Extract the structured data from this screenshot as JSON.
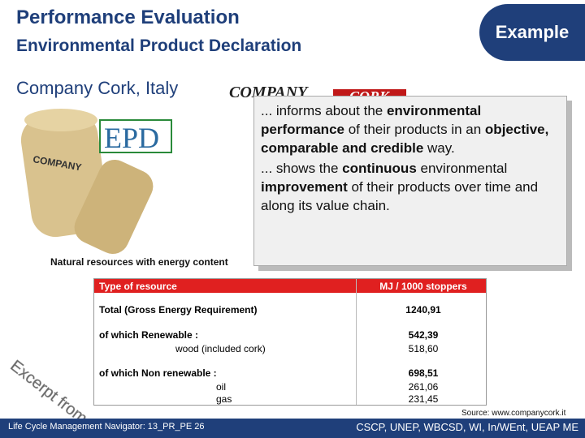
{
  "header": {
    "title": "Performance Evaluation",
    "subtitle": "Environmental Product Declaration",
    "badge": "Example"
  },
  "company": "Company Cork, Italy",
  "logo": {
    "word1": "COMPANY",
    "word2": "CORK"
  },
  "epd_logo": "EPD",
  "callout": [
    [
      {
        "text": "... informs about the ",
        "bold": false
      },
      {
        "text": "environmental performance",
        "bold": true
      },
      {
        "text": " of their products in an ",
        "bold": false
      },
      {
        "text": "objective, comparable and credible",
        "bold": true
      },
      {
        "text": " way.",
        "bold": false
      }
    ],
    [
      {
        "text": "... shows the ",
        "bold": false
      },
      {
        "text": "continuous",
        "bold": true
      },
      {
        "text": " environmental ",
        "bold": false
      },
      {
        "text": "improvement",
        "bold": true
      },
      {
        "text": " of their products over time and along its value chain.",
        "bold": false
      }
    ]
  ],
  "table": {
    "caption": "Natural resources with energy content",
    "header": [
      "Type of resource",
      "MJ / 1000 stoppers"
    ],
    "rows": [
      [
        "Total (Gross Energy Requirement)",
        "1240,91"
      ],
      [
        "of which Renewable :",
        "542,39"
      ],
      [
        "wood (included cork)",
        "518,60"
      ],
      [
        "of which Non renewable :",
        "698,51"
      ],
      [
        "oil",
        "261,06"
      ],
      [
        "gas",
        "231,45"
      ]
    ]
  },
  "stamp": "Excerpt from EPD",
  "source": "Source: www.companycork.it",
  "footer": {
    "left": "Life Cycle Management Navigator: 13_PR_PE 26",
    "right": "CSCP, UNEP, WBCSD, WI, In/WEnt, UEAP ME"
  }
}
